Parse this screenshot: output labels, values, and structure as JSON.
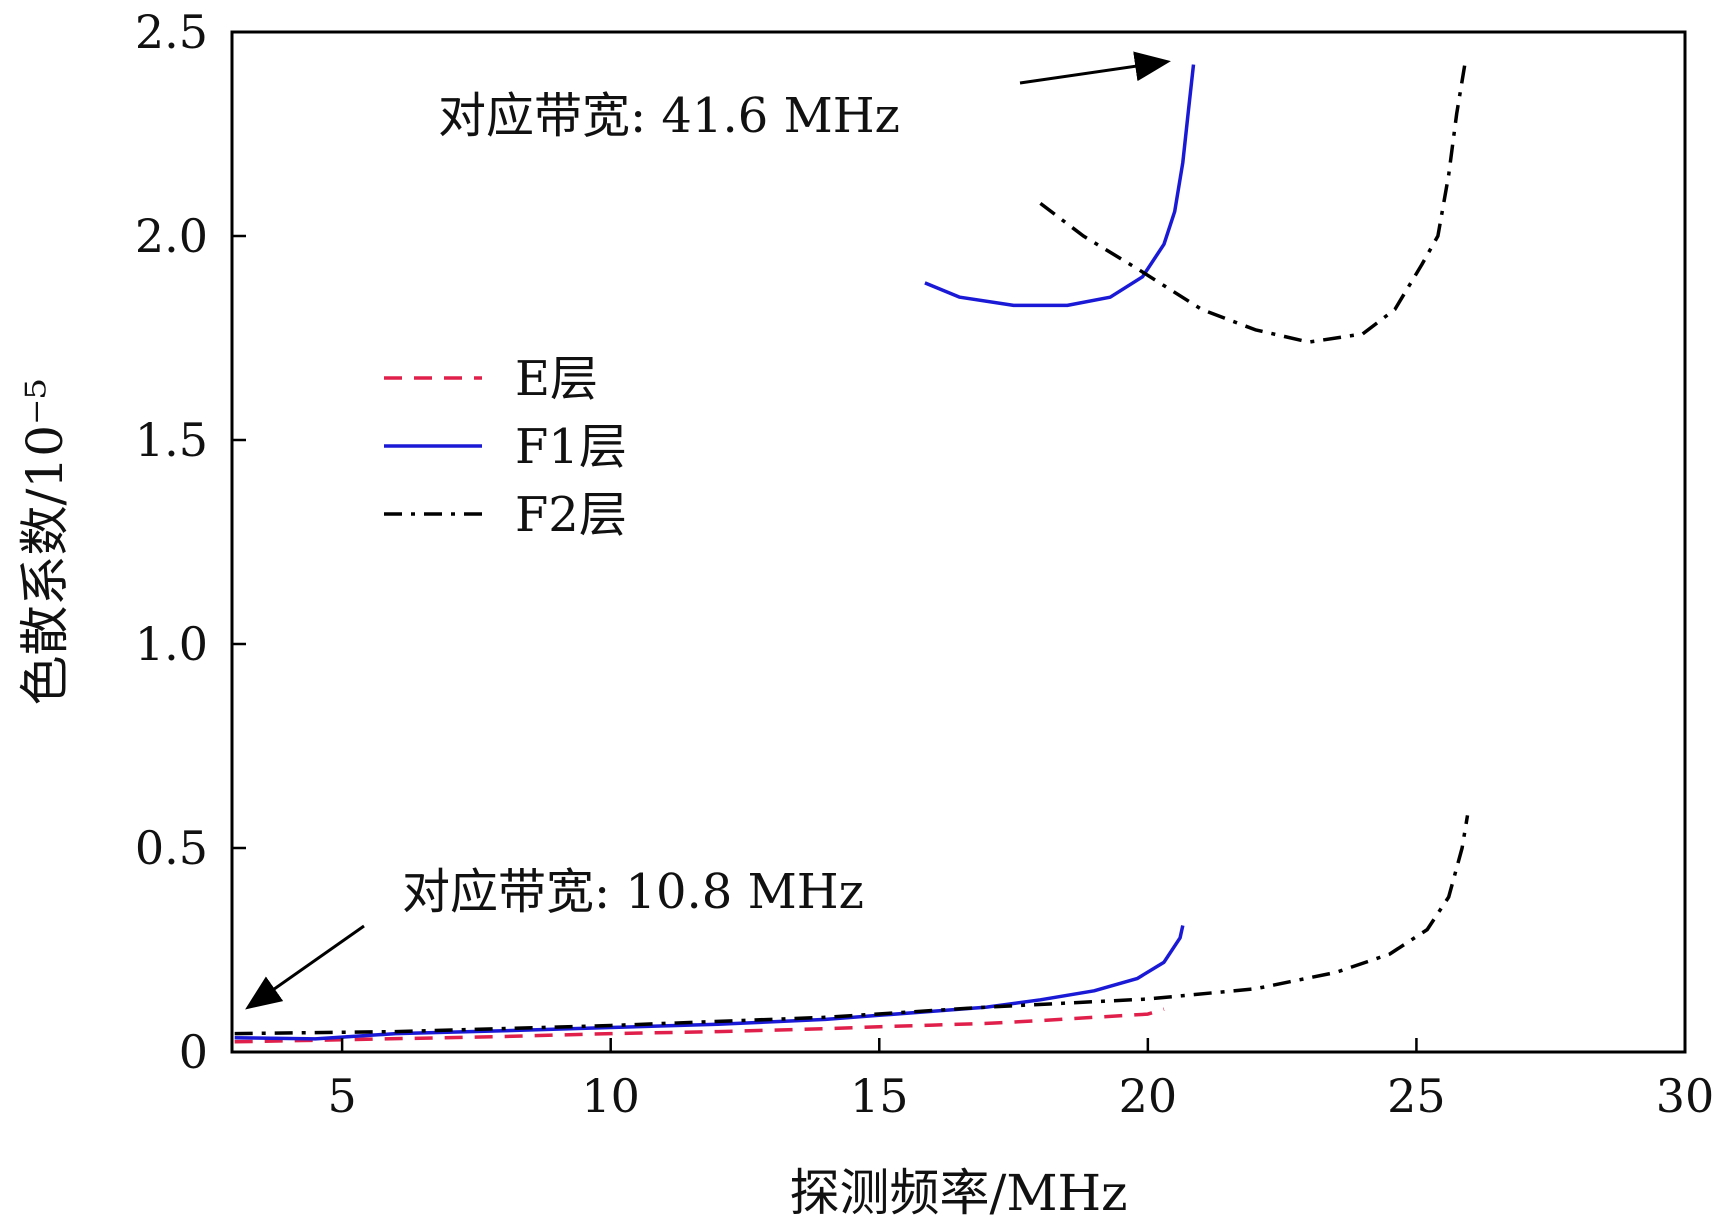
{
  "chart_data": {
    "type": "line",
    "xlabel": "探测频率/MHz",
    "ylabel": "色散系数/10⁻⁵",
    "xlim": [
      2.95,
      30
    ],
    "ylim": [
      0,
      2.5
    ],
    "xticks": [
      5,
      10,
      15,
      20,
      25,
      30
    ],
    "xtick_labels": [
      "5",
      "10",
      "15",
      "20",
      "25",
      "30"
    ],
    "yticks": [
      0,
      0.5,
      1.0,
      1.5,
      2.0,
      2.5
    ],
    "ytick_labels": [
      "0",
      "0.5",
      "1.0",
      "1.5",
      "2.0",
      "2.5"
    ],
    "grid": false,
    "legend_position": "center-left",
    "series": [
      {
        "name": "E层",
        "color": "#e0204a",
        "dash": "dashed",
        "points": [
          [
            3.0,
            0.025
          ],
          [
            5,
            0.03
          ],
          [
            8,
            0.038
          ],
          [
            10,
            0.045
          ],
          [
            12,
            0.05
          ],
          [
            14,
            0.057
          ],
          [
            15,
            0.062
          ],
          [
            16,
            0.066
          ],
          [
            17,
            0.07
          ],
          [
            18,
            0.077
          ],
          [
            19,
            0.085
          ],
          [
            20,
            0.093
          ],
          [
            20.3,
            0.105
          ]
        ]
      },
      {
        "name": "F1层",
        "color": "#1a1ad6",
        "dash": "solid",
        "points": [
          [
            3.0,
            0.035
          ],
          [
            4.5,
            0.032
          ],
          [
            6,
            0.045
          ],
          [
            8,
            0.052
          ],
          [
            10,
            0.06
          ],
          [
            12,
            0.068
          ],
          [
            14,
            0.08
          ],
          [
            15,
            0.09
          ],
          [
            16,
            0.1
          ],
          [
            17,
            0.11
          ],
          [
            18,
            0.128
          ],
          [
            19,
            0.15
          ],
          [
            19.8,
            0.18
          ],
          [
            20.3,
            0.22
          ],
          [
            20.6,
            0.28
          ],
          [
            20.65,
            0.31
          ]
        ]
      },
      {
        "name": "F2层",
        "color": "#000000",
        "dash": "dashdot",
        "points": [
          [
            3.0,
            0.045
          ],
          [
            6,
            0.05
          ],
          [
            10,
            0.065
          ],
          [
            14,
            0.085
          ],
          [
            17,
            0.11
          ],
          [
            20,
            0.13
          ],
          [
            22,
            0.155
          ],
          [
            23.5,
            0.195
          ],
          [
            24.5,
            0.24
          ],
          [
            25.2,
            0.3
          ],
          [
            25.6,
            0.38
          ],
          [
            25.85,
            0.5
          ],
          [
            25.95,
            0.58
          ]
        ]
      },
      {
        "name": "F1层",
        "color": "#1a1ad6",
        "dash": "solid",
        "points": [
          [
            15.85,
            1.885
          ],
          [
            16.5,
            1.85
          ],
          [
            17.5,
            1.83
          ],
          [
            18.5,
            1.83
          ],
          [
            19.3,
            1.85
          ],
          [
            19.9,
            1.9
          ],
          [
            20.3,
            1.98
          ],
          [
            20.5,
            2.06
          ],
          [
            20.65,
            2.18
          ],
          [
            20.75,
            2.3
          ],
          [
            20.85,
            2.42
          ]
        ]
      },
      {
        "name": "F2层",
        "color": "#000000",
        "dash": "dashdot",
        "points": [
          [
            18.0,
            2.08
          ],
          [
            18.8,
            2.0
          ],
          [
            19.8,
            1.92
          ],
          [
            21,
            1.82
          ],
          [
            22,
            1.77
          ],
          [
            23,
            1.74
          ],
          [
            24,
            1.76
          ],
          [
            24.6,
            1.82
          ],
          [
            25.1,
            1.93
          ],
          [
            25.4,
            2.0
          ],
          [
            25.6,
            2.15
          ],
          [
            25.75,
            2.3
          ],
          [
            25.9,
            2.42
          ]
        ]
      }
    ],
    "legend": [
      {
        "label": "E层",
        "color": "#e0204a",
        "dash": "dashed"
      },
      {
        "label": "F1层",
        "color": "#1a1ad6",
        "dash": "solid"
      },
      {
        "label": "F2层",
        "color": "#000000",
        "dash": "dashdot"
      }
    ],
    "annotations": [
      {
        "text": "对应带宽: 41.6 MHz",
        "arrow_to": [
          20.85,
          2.42
        ]
      },
      {
        "text": "对应带宽: 10.8 MHz",
        "arrow_to": [
          3.2,
          0.1
        ]
      }
    ]
  }
}
